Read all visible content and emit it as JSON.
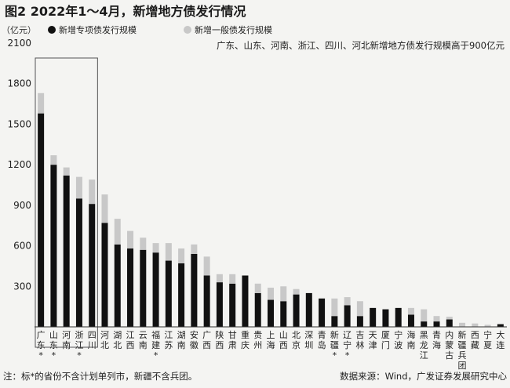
{
  "header": {
    "title": "图2  2022年1～4月，新增地方债发行情况",
    "unit": "（亿元）"
  },
  "note": "注：标*的省份不含计划单列市，新疆不含兵团。",
  "source": "数据来源：Wind，广发证券发展研究中心",
  "colors": {
    "special": "#111111",
    "general": "#c8c8c8",
    "box": "#555555"
  },
  "chart_data": {
    "type": "bar",
    "stacked": true,
    "annotation": "广东、山东、河南、浙江、四川、河北新增地方债发行规模高于900亿元",
    "ylim": [
      0,
      2100
    ],
    "yticks": [
      0,
      300,
      600,
      900,
      1200,
      1500,
      1800,
      2100
    ],
    "ytick_labels": [
      "",
      "300",
      "600",
      "900",
      "1200",
      "1500",
      "1800",
      "2100"
    ],
    "categories": [
      "广东",
      "山东",
      "河南",
      "浙江",
      "四川",
      "河北",
      "湖北",
      "江西",
      "云南",
      "福建",
      "江苏",
      "湖南",
      "安徽",
      "广西",
      "陕西",
      "甘肃",
      "重庆",
      "贵州",
      "上海",
      "山西",
      "北京",
      "深圳",
      "青岛",
      "新疆",
      "辽宁",
      "吉林",
      "天津",
      "厦门",
      "宁波",
      "海南",
      "黑龙江",
      "青海",
      "内蒙古",
      "新疆兵团",
      "西藏",
      "宁夏",
      "大连"
    ],
    "starred": [
      true,
      true,
      false,
      true,
      false,
      false,
      false,
      false,
      false,
      true,
      false,
      false,
      false,
      false,
      false,
      false,
      false,
      false,
      false,
      false,
      false,
      false,
      false,
      true,
      true,
      false,
      false,
      false,
      false,
      false,
      false,
      false,
      false,
      false,
      false,
      false,
      false
    ],
    "highlight_box": [
      "广东",
      "四川"
    ],
    "series": [
      {
        "name": "新增专项债发行规模",
        "color": "#111111",
        "values": [
          1580,
          1200,
          1120,
          950,
          910,
          770,
          610,
          580,
          570,
          550,
          490,
          470,
          540,
          380,
          330,
          320,
          380,
          250,
          200,
          190,
          240,
          250,
          210,
          80,
          160,
          80,
          140,
          130,
          140,
          90,
          40,
          40,
          55,
          0,
          0,
          0,
          20
        ]
      },
      {
        "name": "新增一般债发行规模",
        "color": "#c8c8c8",
        "values": [
          150,
          70,
          60,
          160,
          180,
          210,
          190,
          130,
          90,
          70,
          130,
          110,
          70,
          140,
          60,
          70,
          0,
          70,
          90,
          110,
          40,
          0,
          0,
          130,
          60,
          110,
          0,
          0,
          0,
          50,
          90,
          40,
          20,
          30,
          25,
          15,
          0
        ]
      }
    ]
  }
}
